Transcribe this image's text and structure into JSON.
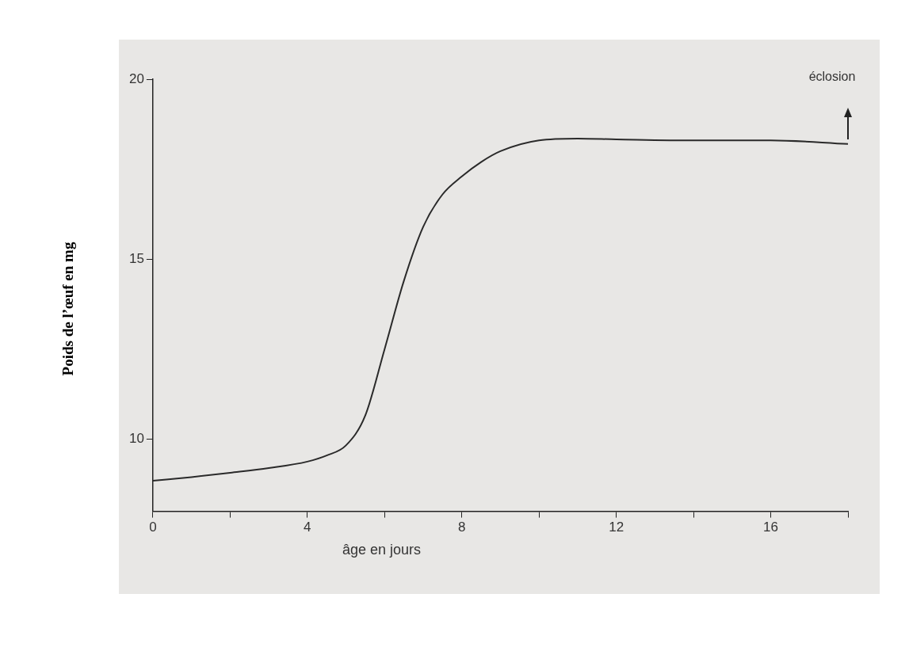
{
  "chart_data": {
    "type": "line",
    "xlabel": "âge en jours",
    "ylabel": "Poids de l’œuf en mg",
    "x": [
      0,
      1,
      2,
      3,
      4,
      4.5,
      5,
      5.5,
      6,
      6.5,
      7,
      7.5,
      8,
      8.5,
      9,
      10,
      11,
      12,
      14,
      16,
      18
    ],
    "series": [
      {
        "color": "#2a2a2a",
        "values": [
          8.85,
          8.95,
          9.07,
          9.2,
          9.38,
          9.55,
          9.83,
          10.66,
          12.5,
          14.4,
          15.9,
          16.8,
          17.3,
          17.7,
          18.0,
          18.3,
          18.35,
          18.33,
          18.3,
          18.3,
          18.2
        ]
      }
    ],
    "xlim": [
      0,
      18
    ],
    "xticks": [
      0,
      {
        "value": 2,
        "label": null
      },
      4,
      {
        "value": 6,
        "label": null
      },
      8,
      {
        "value": 10,
        "label": null
      },
      12,
      {
        "value": 14,
        "label": null
      },
      16,
      {
        "value": 18,
        "label": null
      }
    ],
    "ylim": [
      8,
      20
    ],
    "yticks": [
      10,
      15,
      20
    ],
    "annotations": [
      "éclosion"
    ],
    "grid": false,
    "legend": false,
    "marker": "none",
    "line_style": "solid"
  }
}
